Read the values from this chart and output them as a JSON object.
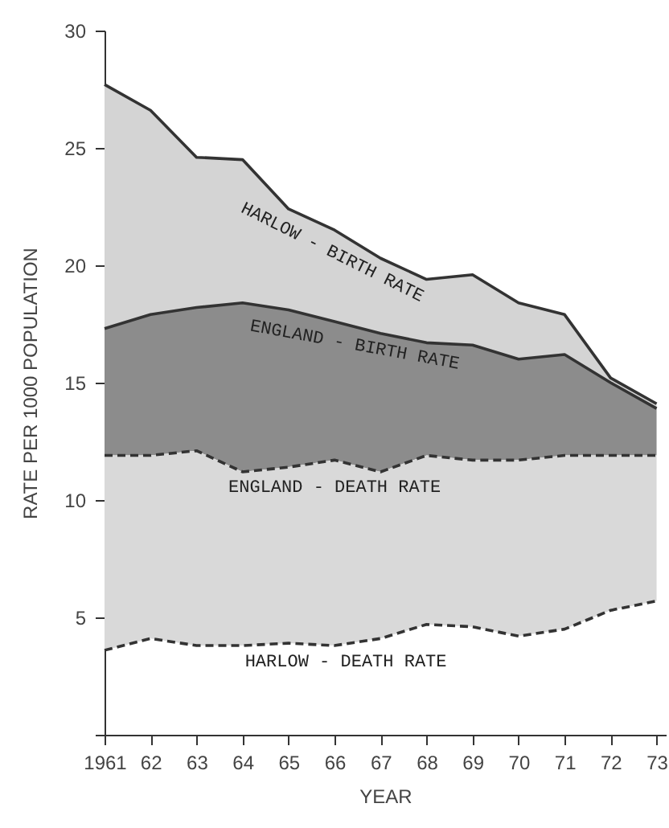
{
  "chart_data": {
    "type": "area",
    "xlabel": "YEAR",
    "ylabel": "RATE PER 1000 POPULATION",
    "x": [
      1961,
      1962,
      1963,
      1964,
      1965,
      1966,
      1967,
      1968,
      1969,
      1970,
      1971,
      1972,
      1973
    ],
    "xlim": [
      1961,
      1973.2
    ],
    "xticks": [
      1961,
      {
        "value": 1962,
        "label": "62"
      },
      {
        "value": 1963,
        "label": "63"
      },
      {
        "value": 1964,
        "label": "64"
      },
      {
        "value": 1965,
        "label": "65"
      },
      {
        "value": 1966,
        "label": "66"
      },
      {
        "value": 1967,
        "label": "67"
      },
      {
        "value": 1968,
        "label": "68"
      },
      {
        "value": 1969,
        "label": "69"
      },
      {
        "value": 1970,
        "label": "70"
      },
      {
        "value": 1971,
        "label": "71"
      },
      {
        "value": 1972,
        "label": "72"
      },
      {
        "value": 1973,
        "label": "73"
      }
    ],
    "ylim": [
      0,
      30
    ],
    "yticks": [
      {
        "value": 0,
        "label": null
      },
      5,
      10,
      15,
      20,
      25,
      30
    ],
    "series": [
      {
        "name": "HARLOW - BIRTH RATE",
        "color": "#d4d4d4",
        "line_style": "solid",
        "values": [
          27.7,
          26.6,
          24.6,
          24.5,
          22.4,
          21.5,
          20.3,
          19.4,
          19.6,
          18.4,
          17.9,
          15.2,
          14.1
        ]
      },
      {
        "name": "ENGLAND - BIRTH RATE",
        "color": "#8c8c8c",
        "line_style": "solid",
        "values": [
          17.3,
          17.9,
          18.2,
          18.4,
          18.1,
          17.6,
          17.1,
          16.7,
          16.6,
          16.0,
          16.2,
          15.0,
          13.9
        ]
      },
      {
        "name": "ENGLAND - DEATH RATE",
        "color": "#d9d9d9",
        "line_style": "dashed",
        "values": [
          11.9,
          11.9,
          12.1,
          11.2,
          11.4,
          11.7,
          11.2,
          11.9,
          11.7,
          11.7,
          11.9,
          11.9,
          11.9
        ]
      },
      {
        "name": "HARLOW - DEATH RATE",
        "type": "line",
        "color": "#333333",
        "line_style": "dashed",
        "values": [
          3.6,
          4.1,
          3.8,
          3.8,
          3.9,
          3.8,
          4.1,
          4.7,
          4.6,
          4.2,
          4.5,
          5.3,
          5.7
        ]
      }
    ]
  }
}
